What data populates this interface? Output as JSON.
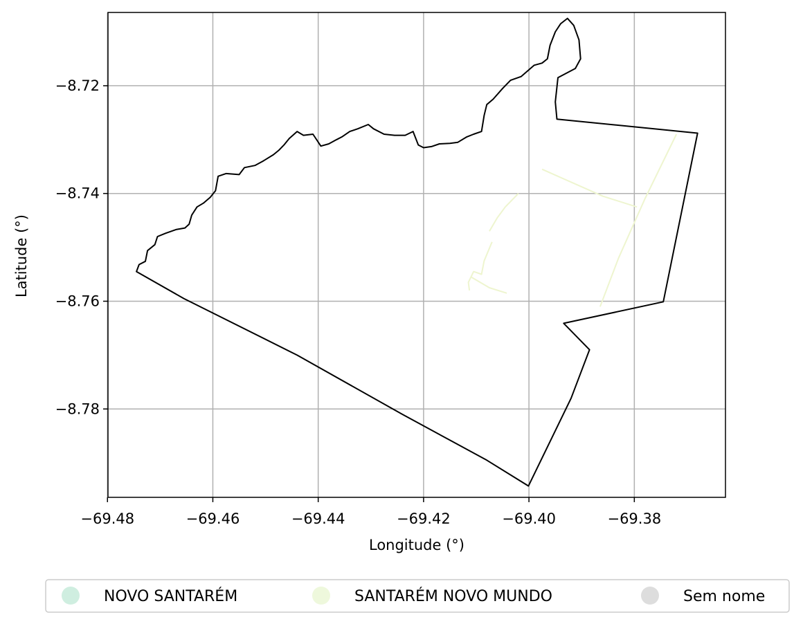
{
  "chart_data": {
    "type": "map",
    "xlabel": "Longitude (°)",
    "ylabel": "Latitude (°)",
    "xlim": [
      -69.4799,
      -69.3627
    ],
    "ylim": [
      -8.7964,
      -8.7064
    ],
    "xticks": [
      {
        "value": -69.48,
        "label": "−69.48"
      },
      {
        "value": -69.46,
        "label": "−69.46"
      },
      {
        "value": -69.44,
        "label": "−69.44"
      },
      {
        "value": -69.42,
        "label": "−69.42"
      },
      {
        "value": -69.4,
        "label": "−69.40"
      },
      {
        "value": -69.38,
        "label": "−69.38"
      }
    ],
    "yticks": [
      {
        "value": -8.72,
        "label": "−8.72"
      },
      {
        "value": -8.74,
        "label": "−8.74"
      },
      {
        "value": -8.76,
        "label": "−8.76"
      },
      {
        "value": -8.78,
        "label": "−8.78"
      }
    ],
    "grid": true,
    "boundary": [
      [
        -69.4745,
        -8.7545
      ],
      [
        -69.474,
        -8.7532
      ],
      [
        -69.4728,
        -8.7526
      ],
      [
        -69.4724,
        -8.7506
      ],
      [
        -69.471,
        -8.7495
      ],
      [
        -69.4705,
        -8.748
      ],
      [
        -69.469,
        -8.7474
      ],
      [
        -69.467,
        -8.7467
      ],
      [
        -69.4653,
        -8.7464
      ],
      [
        -69.4645,
        -8.7457
      ],
      [
        -69.464,
        -8.744
      ],
      [
        -69.463,
        -8.7425
      ],
      [
        -69.4618,
        -8.7418
      ],
      [
        -69.4605,
        -8.7407
      ],
      [
        -69.4595,
        -8.7395
      ],
      [
        -69.459,
        -8.7368
      ],
      [
        -69.4575,
        -8.7363
      ],
      [
        -69.455,
        -8.7365
      ],
      [
        -69.454,
        -8.7352
      ],
      [
        -69.452,
        -8.7348
      ],
      [
        -69.4505,
        -8.734
      ],
      [
        -69.4485,
        -8.7328
      ],
      [
        -69.4475,
        -8.732
      ],
      [
        -69.4465,
        -8.731
      ],
      [
        -69.4455,
        -8.7298
      ],
      [
        -69.444,
        -8.7285
      ],
      [
        -69.4428,
        -8.7292
      ],
      [
        -69.441,
        -8.729
      ],
      [
        -69.4395,
        -8.7312
      ],
      [
        -69.438,
        -8.7308
      ],
      [
        -69.4365,
        -8.73
      ],
      [
        -69.4355,
        -8.7295
      ],
      [
        -69.434,
        -8.7285
      ],
      [
        -69.4325,
        -8.728
      ],
      [
        -69.4305,
        -8.7272
      ],
      [
        -69.4295,
        -8.728
      ],
      [
        -69.4275,
        -8.729
      ],
      [
        -69.4255,
        -8.7292
      ],
      [
        -69.4235,
        -8.7292
      ],
      [
        -69.422,
        -8.7285
      ],
      [
        -69.421,
        -8.731
      ],
      [
        -69.42,
        -8.7315
      ],
      [
        -69.4185,
        -8.7313
      ],
      [
        -69.417,
        -8.7308
      ],
      [
        -69.415,
        -8.7307
      ],
      [
        -69.4135,
        -8.7305
      ],
      [
        -69.4118,
        -8.7295
      ],
      [
        -69.4105,
        -8.729
      ],
      [
        -69.409,
        -8.7285
      ],
      [
        -69.4085,
        -8.7255
      ],
      [
        -69.408,
        -8.7235
      ],
      [
        -69.4068,
        -8.7225
      ],
      [
        -69.405,
        -8.7205
      ],
      [
        -69.4035,
        -8.719
      ],
      [
        -69.4015,
        -8.7183
      ],
      [
        -69.399,
        -8.7162
      ],
      [
        -69.3975,
        -8.7158
      ],
      [
        -69.3965,
        -8.715
      ],
      [
        -69.396,
        -8.7125
      ],
      [
        -69.395,
        -8.71
      ],
      [
        -69.394,
        -8.7085
      ],
      [
        -69.3927,
        -8.7075
      ],
      [
        -69.3915,
        -8.7088
      ],
      [
        -69.3905,
        -8.7115
      ],
      [
        -69.3902,
        -8.715
      ],
      [
        -69.3912,
        -8.7168
      ],
      [
        -69.3945,
        -8.7185
      ],
      [
        -69.395,
        -8.723
      ],
      [
        -69.3947,
        -8.7262
      ],
      [
        -69.368,
        -8.7288
      ],
      [
        -69.3745,
        -8.7601
      ],
      [
        -69.3934,
        -8.7641
      ],
      [
        -69.3885,
        -8.769
      ],
      [
        -69.392,
        -8.778
      ],
      [
        -69.4001,
        -8.7943
      ],
      [
        -69.408,
        -8.7895
      ],
      [
        -69.424,
        -8.781
      ],
      [
        -69.444,
        -8.77
      ],
      [
        -69.4655,
        -8.7595
      ],
      [
        -69.4745,
        -8.7545
      ]
    ],
    "roads": [
      [
        [
          -69.3975,
          -8.7355
        ],
        [
          -69.386,
          -8.7405
        ],
        [
          -69.3795,
          -8.7425
        ]
      ],
      [
        [
          -69.372,
          -8.729
        ],
        [
          -69.378,
          -8.741
        ],
        [
          -69.383,
          -8.752
        ],
        [
          -69.3865,
          -8.761
        ]
      ],
      [
        [
          -69.402,
          -8.74
        ],
        [
          -69.4045,
          -8.7425
        ],
        [
          -69.406,
          -8.7445
        ],
        [
          -69.4075,
          -8.747
        ]
      ],
      [
        [
          -69.407,
          -8.749
        ],
        [
          -69.4085,
          -8.7525
        ],
        [
          -69.409,
          -8.755
        ],
        [
          -69.4105,
          -8.7545
        ],
        [
          -69.4115,
          -8.7565
        ],
        [
          -69.4113,
          -8.758
        ]
      ],
      [
        [
          -69.411,
          -8.7555
        ],
        [
          -69.4075,
          -8.7575
        ],
        [
          -69.4042,
          -8.7585
        ]
      ]
    ],
    "legend": {
      "placement": "bottom-center",
      "entries": [
        {
          "label": "NOVO SANTARÉM",
          "color": "#cfeee0"
        },
        {
          "label": "SANTARÉM NOVO MUNDO",
          "color": "#eef8dc"
        },
        {
          "label": "Sem nome",
          "color": "#dddddd"
        }
      ]
    },
    "colors": {
      "boundary": "#000000",
      "road": "#eef5cf",
      "grid": "#b0b0b0"
    }
  }
}
